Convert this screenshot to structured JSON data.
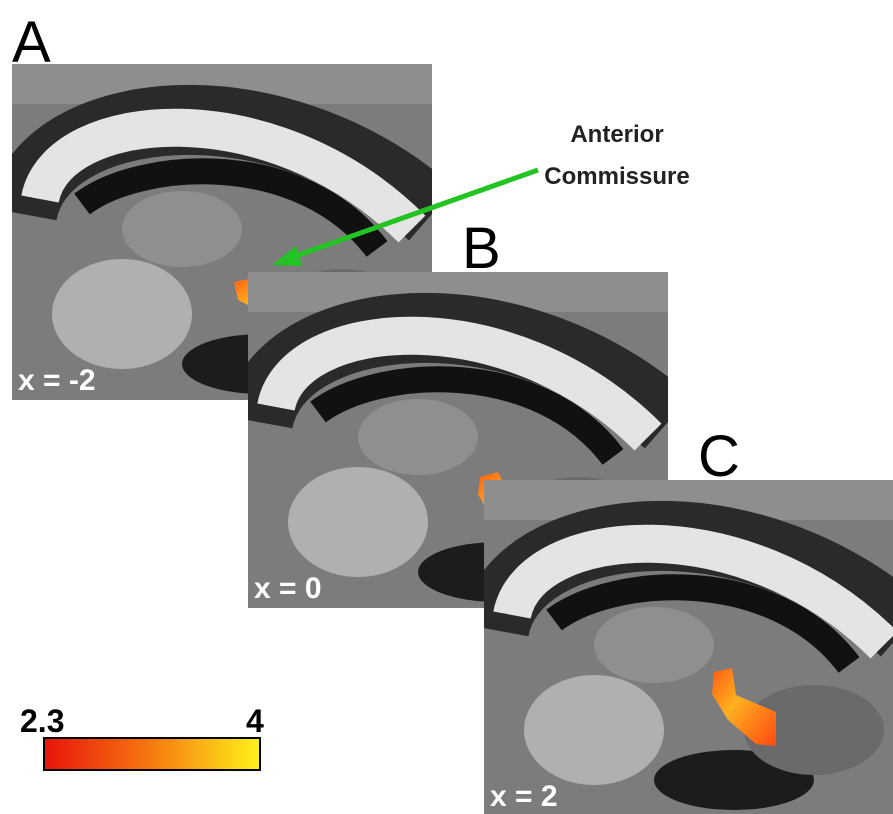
{
  "panels": [
    {
      "letter": "A",
      "coord": "x = -2"
    },
    {
      "letter": "B",
      "coord": "x = 0"
    },
    {
      "letter": "C",
      "coord": "x = 2"
    }
  ],
  "annotation": {
    "line1": "Anterior",
    "line2": "Commissure"
  },
  "colorbar": {
    "min": "2.3",
    "max": "4"
  }
}
